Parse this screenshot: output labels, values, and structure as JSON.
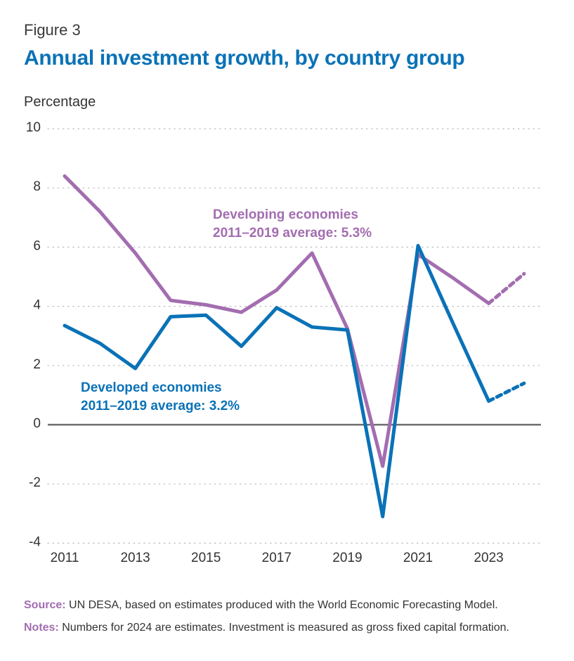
{
  "figure": {
    "label": "Figure 3",
    "title": "Annual investment growth, by country group"
  },
  "chart_data": {
    "type": "line",
    "title": "Annual investment growth, by country group",
    "ylabel": "Percentage",
    "xlabel": "",
    "ylim": [
      -4,
      10
    ],
    "yticks": [
      -4,
      -2,
      0,
      2,
      4,
      6,
      8,
      10
    ],
    "xlim": [
      2011,
      2024
    ],
    "xticks": [
      2011,
      2013,
      2015,
      2017,
      2019,
      2021,
      2023
    ],
    "grid": "horizontal dotted",
    "x": [
      2011,
      2012,
      2013,
      2014,
      2015,
      2016,
      2017,
      2018,
      2019,
      2020,
      2021,
      2022,
      2023,
      2024
    ],
    "estimate_from": 2023,
    "series": [
      {
        "name": "Developing economies",
        "color": "#a36db0",
        "values": [
          8.4,
          7.2,
          5.8,
          4.2,
          4.05,
          3.8,
          4.55,
          5.8,
          3.25,
          -1.4,
          5.75,
          4.95,
          4.1,
          5.1
        ],
        "annotation": [
          "Developing economies",
          "2011–2019 average: 5.3%"
        ]
      },
      {
        "name": "Developed economies",
        "color": "#0a72b7",
        "values": [
          3.35,
          2.75,
          1.9,
          3.65,
          3.7,
          2.65,
          3.95,
          3.3,
          3.2,
          -3.1,
          6.05,
          3.4,
          0.8,
          1.4
        ],
        "annotation": [
          "Developed economies",
          "2011–2019 average: 3.2%"
        ]
      }
    ]
  },
  "footer": {
    "source_label": "Source:",
    "source_text": "UN DESA, based on estimates produced with the World Economic Forecasting Model.",
    "notes_label": "Notes:",
    "notes_text": "Numbers for 2024 are estimates. Investment is measured as gross fixed capital formation."
  }
}
